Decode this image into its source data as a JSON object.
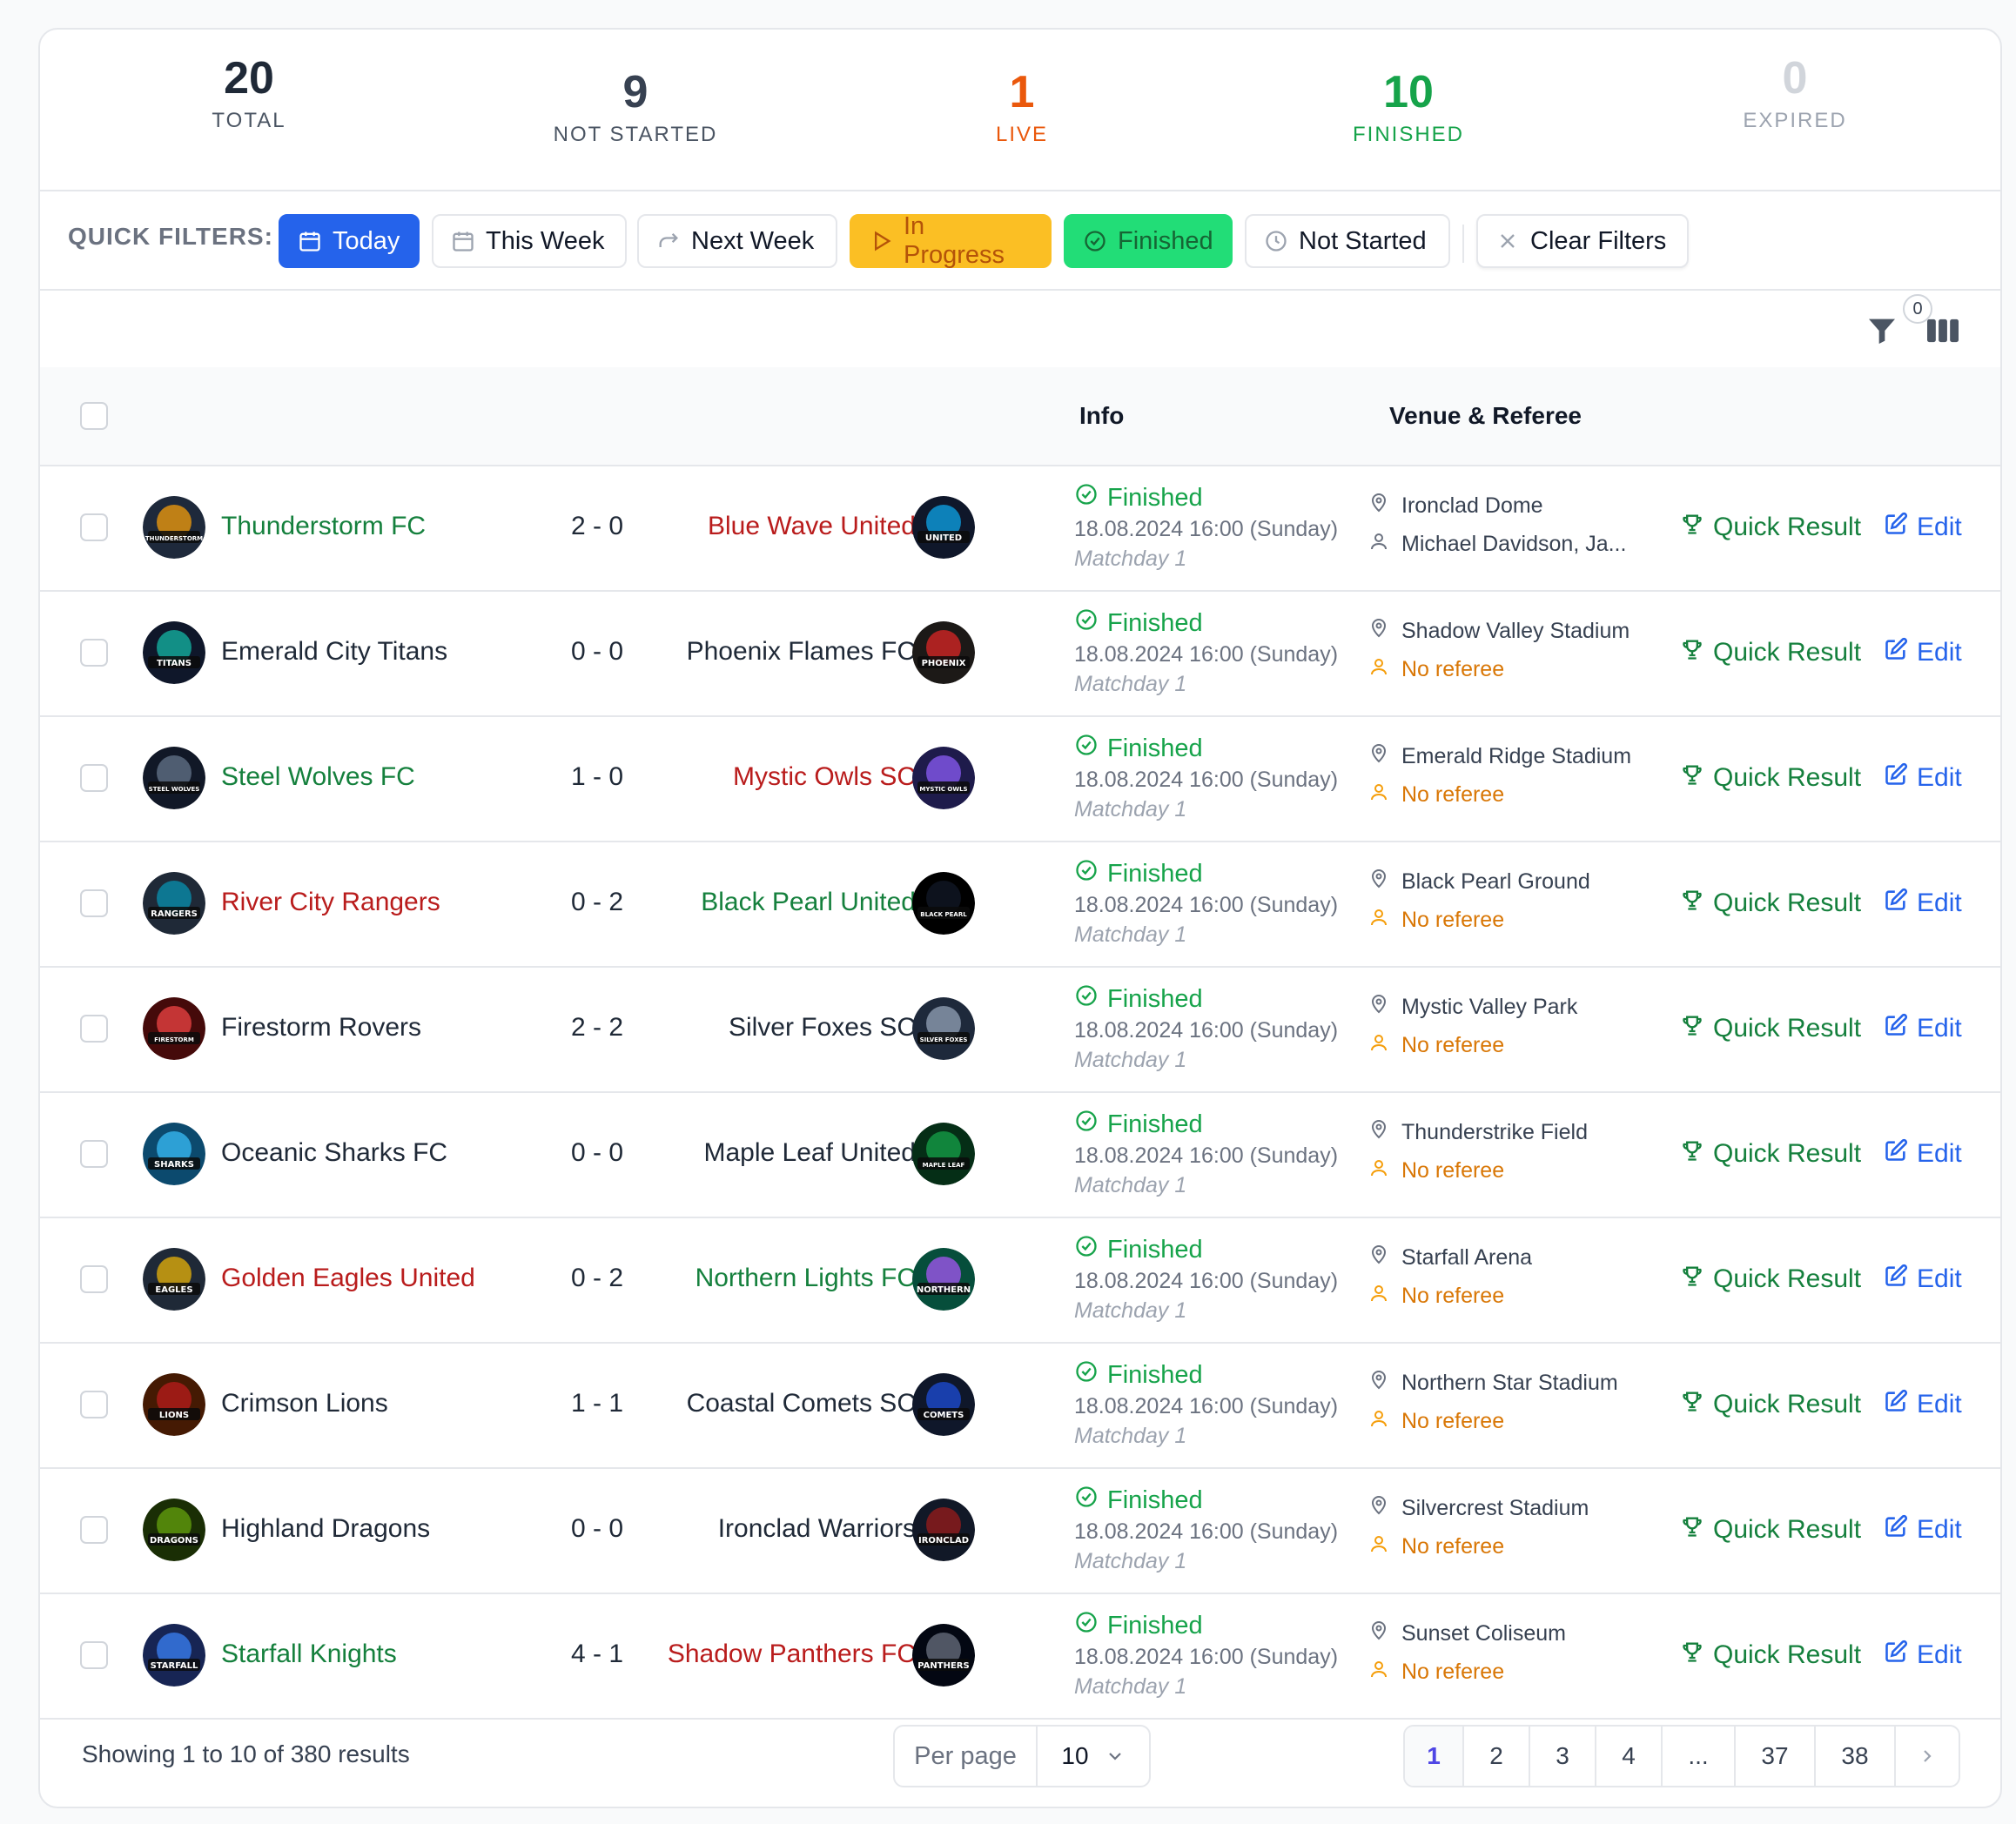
{
  "stats": [
    {
      "value": "20",
      "label": "TOTAL",
      "color": "#1f2937"
    },
    {
      "value": "9",
      "label": "NOT STARTED",
      "color": "#374151"
    },
    {
      "value": "1",
      "label": "LIVE",
      "color": "#ea580c"
    },
    {
      "value": "10",
      "label": "FINISHED",
      "color": "#16a34a"
    },
    {
      "value": "0",
      "label": "EXPIRED",
      "color": "#d1d5db"
    }
  ],
  "filters": {
    "label": "QUICK FILTERS:",
    "today": "Today",
    "this_week": "This Week",
    "next_week": "Next Week",
    "in_progress": "In Progress",
    "finished": "Finished",
    "not_started": "Not Started",
    "clear": "Clear Filters"
  },
  "toolbar": {
    "filter_count": "0"
  },
  "table": {
    "headers": {
      "info": "Info",
      "venue_referee": "Venue & Referee"
    },
    "actions": {
      "quick_result": "Quick Result",
      "edit": "Edit"
    },
    "rows": [
      {
        "home": "Thunderstorm FC",
        "away": "Blue Wave United",
        "score": "2 - 0",
        "home_logo": "THUNDERSTORM",
        "away_logo": "UNITED",
        "status": "Finished",
        "datetime": "18.08.2024 16:00 (Sunday)",
        "matchday": "Matchday 1",
        "venue": "Ironclad Dome",
        "referee": "Michael Davidson, Ja..."
      },
      {
        "home": "Emerald City Titans",
        "away": "Phoenix Flames FC",
        "score": "0 - 0",
        "home_logo": "TITANS",
        "away_logo": "PHOENIX",
        "status": "Finished",
        "datetime": "18.08.2024 16:00 (Sunday)",
        "matchday": "Matchday 1",
        "venue": "Shadow Valley Stadium",
        "referee": "No referee"
      },
      {
        "home": "Steel Wolves FC",
        "away": "Mystic Owls SC",
        "score": "1 - 0",
        "home_logo": "STEEL WOLVES",
        "away_logo": "MYSTIC OWLS",
        "status": "Finished",
        "datetime": "18.08.2024 16:00 (Sunday)",
        "matchday": "Matchday 1",
        "venue": "Emerald Ridge Stadium",
        "referee": "No referee"
      },
      {
        "home": "River City Rangers",
        "away": "Black Pearl United",
        "score": "0 - 2",
        "home_logo": "RANGERS",
        "away_logo": "BLACK PEARL",
        "status": "Finished",
        "datetime": "18.08.2024 16:00 (Sunday)",
        "matchday": "Matchday 1",
        "venue": "Black Pearl Ground",
        "referee": "No referee"
      },
      {
        "home": "Firestorm Rovers",
        "away": "Silver Foxes SC",
        "score": "2 - 2",
        "home_logo": "FIRESTORM",
        "away_logo": "SILVER FOXES",
        "status": "Finished",
        "datetime": "18.08.2024 16:00 (Sunday)",
        "matchday": "Matchday 1",
        "venue": "Mystic Valley Park",
        "referee": "No referee"
      },
      {
        "home": "Oceanic Sharks FC",
        "away": "Maple Leaf United",
        "score": "0 - 0",
        "home_logo": "SHARKS",
        "away_logo": "MAPLE LEAF",
        "status": "Finished",
        "datetime": "18.08.2024 16:00 (Sunday)",
        "matchday": "Matchday 1",
        "venue": "Thunderstrike Field",
        "referee": "No referee"
      },
      {
        "home": "Golden Eagles United",
        "away": "Northern Lights FC",
        "score": "0 - 2",
        "home_logo": "EAGLES",
        "away_logo": "NORTHERN",
        "status": "Finished",
        "datetime": "18.08.2024 16:00 (Sunday)",
        "matchday": "Matchday 1",
        "venue": "Starfall Arena",
        "referee": "No referee"
      },
      {
        "home": "Crimson Lions",
        "away": "Coastal Comets SC",
        "score": "1 - 1",
        "home_logo": "LIONS",
        "away_logo": "COMETS",
        "status": "Finished",
        "datetime": "18.08.2024 16:00 (Sunday)",
        "matchday": "Matchday 1",
        "venue": "Northern Star Stadium",
        "referee": "No referee"
      },
      {
        "home": "Highland Dragons",
        "away": "Ironclad Warriors",
        "score": "0 - 0",
        "home_logo": "DRAGONS",
        "away_logo": "IRONCLAD",
        "status": "Finished",
        "datetime": "18.08.2024 16:00 (Sunday)",
        "matchday": "Matchday 1",
        "venue": "Silvercrest Stadium",
        "referee": "No referee"
      },
      {
        "home": "Starfall Knights",
        "away": "Shadow Panthers FC",
        "score": "4 - 1",
        "home_logo": "STARFALL",
        "away_logo": "PANTHERS",
        "status": "Finished",
        "datetime": "18.08.2024 16:00 (Sunday)",
        "matchday": "Matchday 1",
        "venue": "Sunset Coliseum",
        "referee": "No referee"
      }
    ]
  },
  "footer": {
    "showing": "Showing 1 to 10 of 380 results",
    "per_page_label": "Per page",
    "per_page_value": "10",
    "pages": [
      "1",
      "2",
      "3",
      "4",
      "...",
      "37",
      "38"
    ],
    "active_page": "1"
  },
  "colors": {
    "today_bg": "#2563eb",
    "in_progress_bg": "#fbbf24",
    "finished_bg": "#22dd77",
    "win": "#15803d",
    "lose": "#b91c1c",
    "edit": "#2563eb",
    "no_referee": "#d97706"
  }
}
